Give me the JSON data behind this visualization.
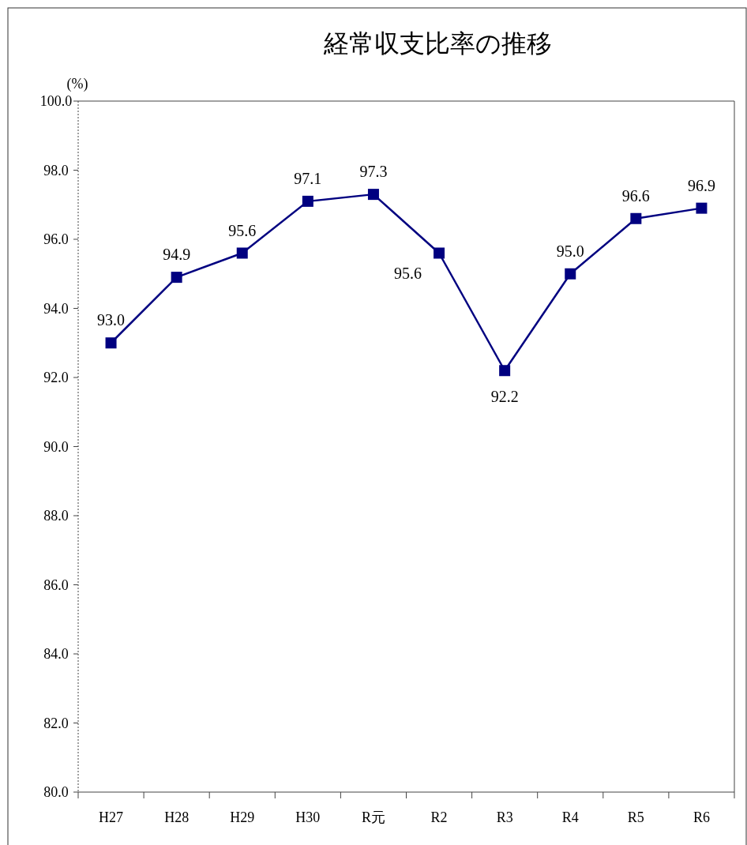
{
  "chart_data": {
    "type": "line",
    "title": "経常収支比率の推移",
    "ylabel": "(%)",
    "categories": [
      "H27",
      "H28",
      "H29",
      "H30",
      "R元",
      "R2",
      "R3",
      "R4",
      "R5",
      "R6"
    ],
    "series": [
      {
        "color": "#000080",
        "values": [
          93.0,
          94.9,
          95.6,
          97.1,
          97.3,
          95.6,
          92.2,
          95.0,
          96.6,
          96.9
        ]
      }
    ],
    "ylim": [
      80,
      100
    ],
    "yticks": [
      {
        "value": 80,
        "label": "80.0"
      },
      {
        "value": 82,
        "label": "82.0"
      },
      {
        "value": 84,
        "label": "84.0"
      },
      {
        "value": 86,
        "label": "86.0"
      },
      {
        "value": 88,
        "label": "88.0"
      },
      {
        "value": 90,
        "label": "90.0"
      },
      {
        "value": 92,
        "label": "92.0"
      },
      {
        "value": 94,
        "label": "94.0"
      },
      {
        "value": 96,
        "label": "96.0"
      },
      {
        "value": 98,
        "label": "98.0"
      },
      {
        "value": 100,
        "label": "100.0"
      }
    ],
    "value_labels": [
      "93.0",
      "94.9",
      "95.6",
      "97.1",
      "97.3",
      "95.6",
      "92.2",
      "95.0",
      "96.6",
      "96.9"
    ],
    "marker": "square",
    "line_style": "solid",
    "grid": false
  }
}
